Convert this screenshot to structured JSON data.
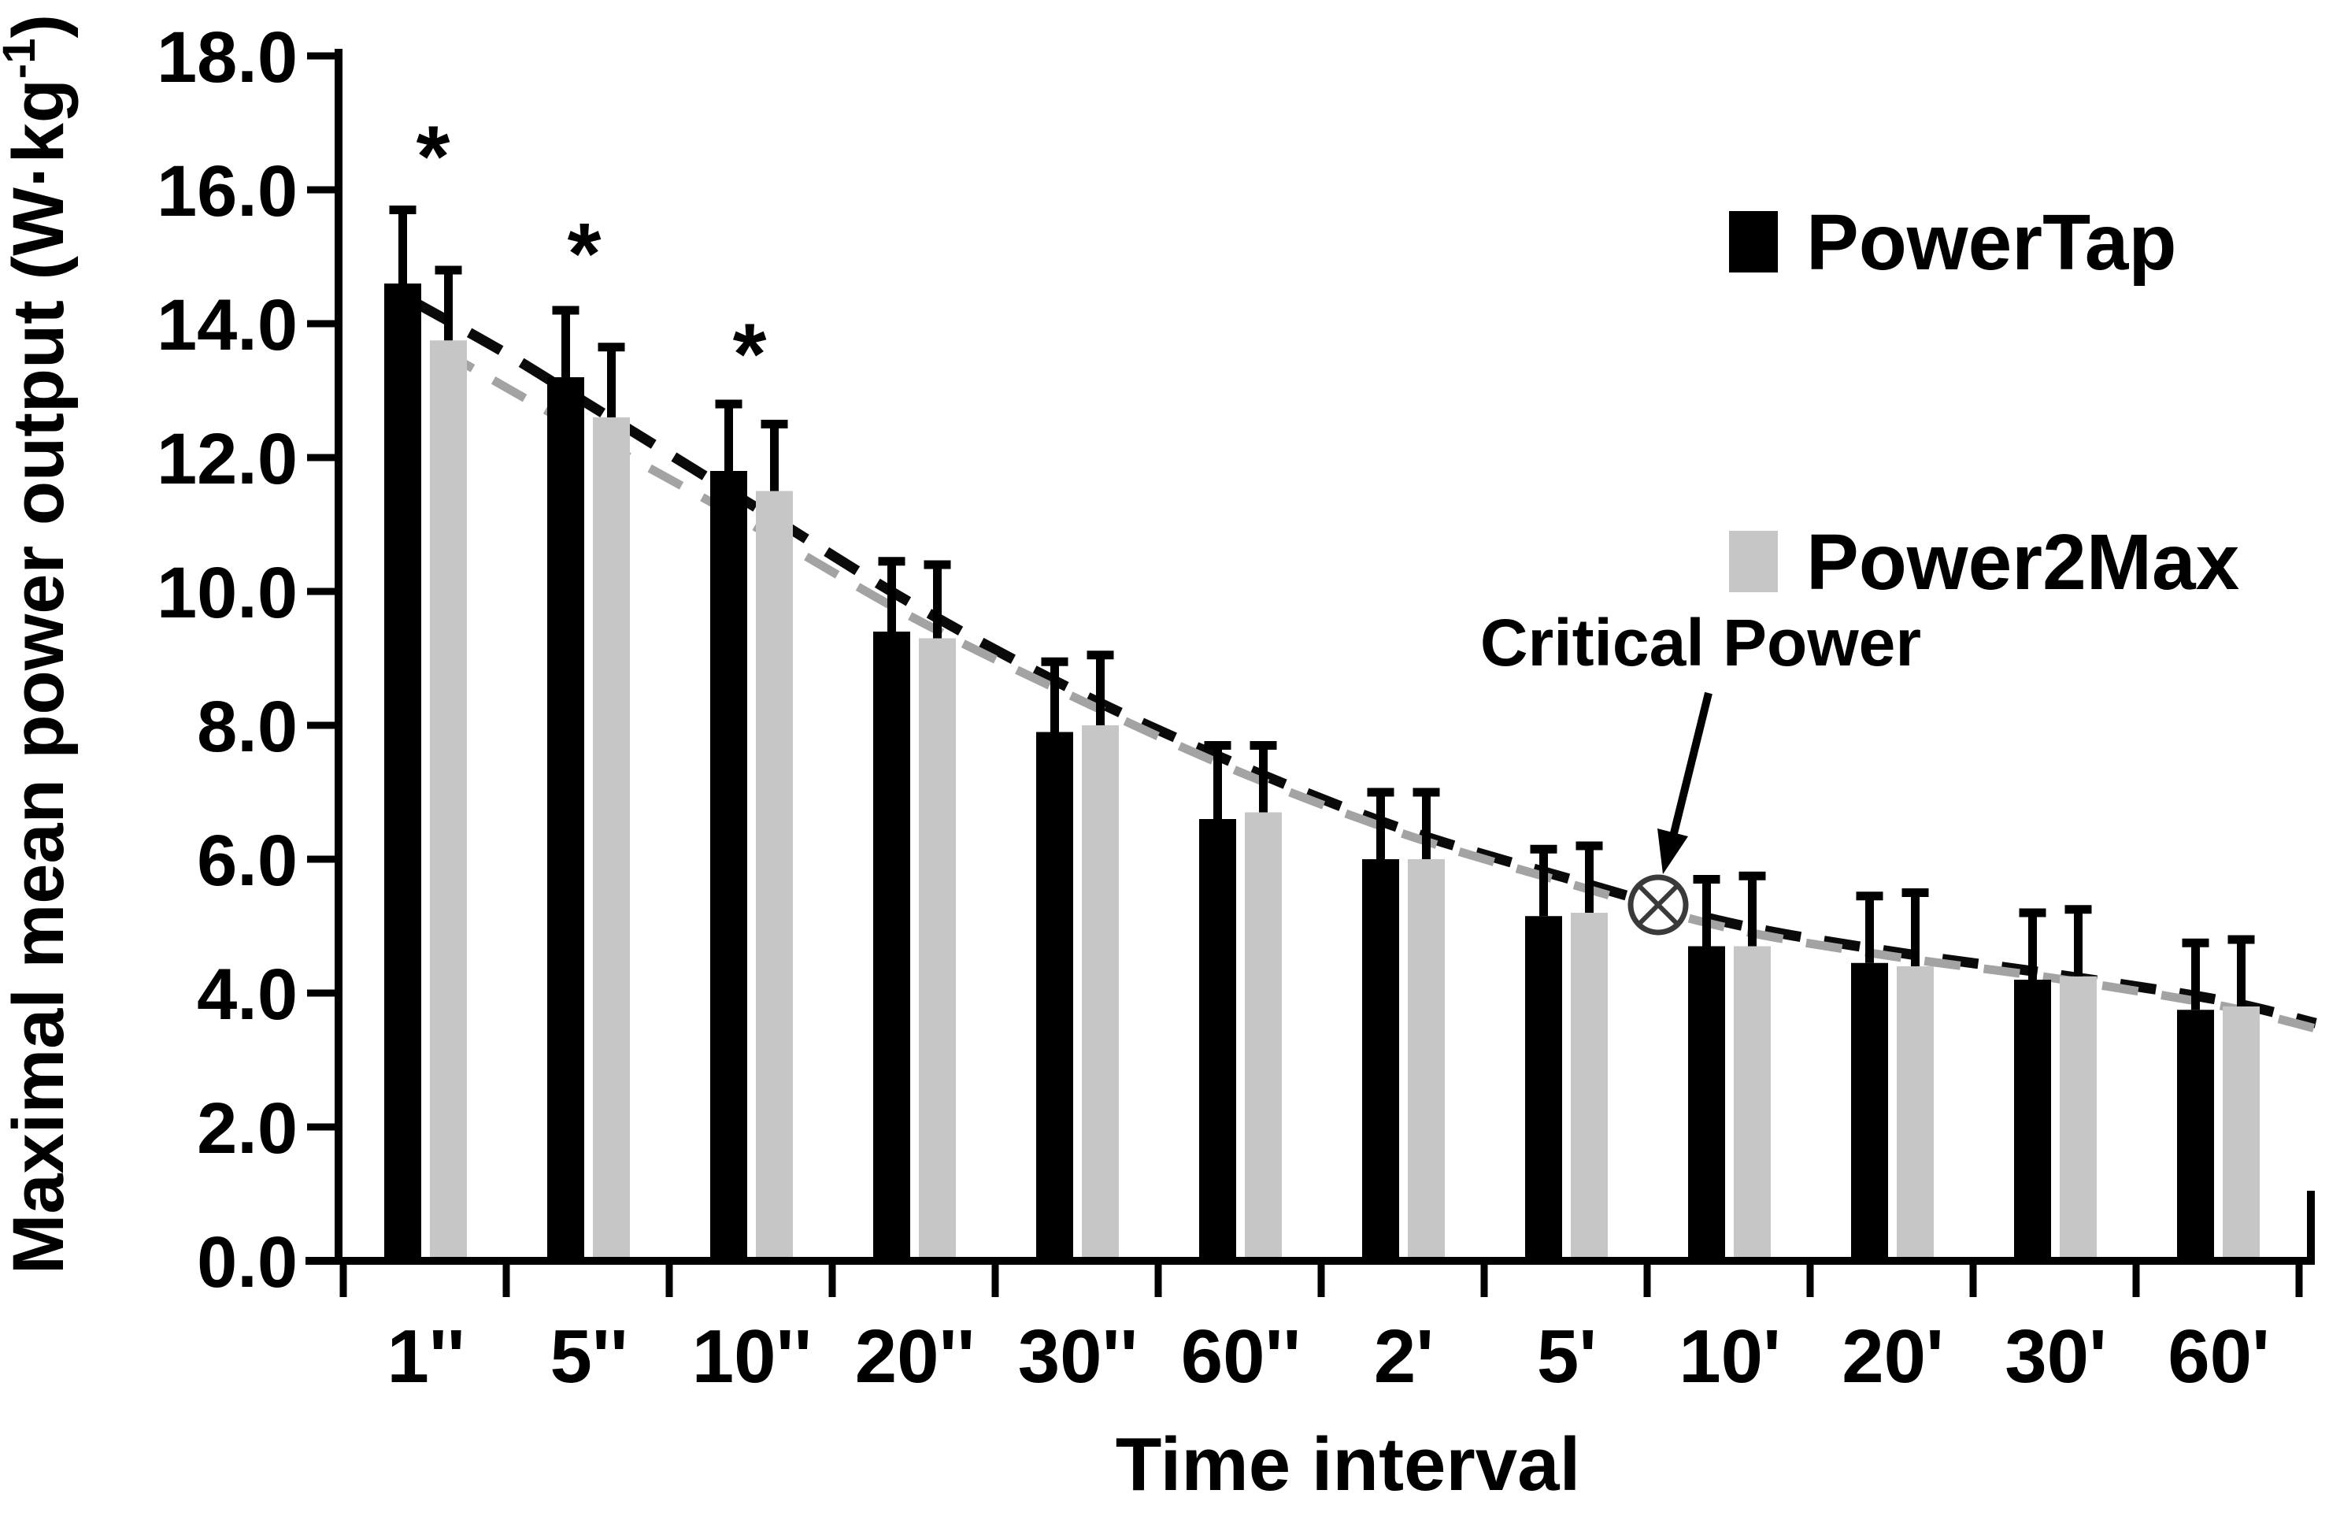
{
  "labels": {
    "y_title_pre": "Maximal mean power output (W·kg",
    "y_title_sup": "-1",
    "y_title_post": ")",
    "x_title": "Time interval"
  },
  "legend": [
    {
      "label": "PowerTap",
      "color": "#000000"
    },
    {
      "label": "Power2Max",
      "color": "#c6c6c6"
    }
  ],
  "annotation": {
    "label": "Critical Power",
    "marker": "circled-x-icon",
    "value": 5.3,
    "location": "between 5' and 10' on the trend line"
  },
  "chart_data": {
    "type": "bar",
    "title": "",
    "xlabel": "Time interval",
    "ylabel": "Maximal mean power output (W·kg-1)",
    "ylim": [
      0,
      18
    ],
    "ytick_step": 2,
    "ytick_labels": [
      "18.0",
      "16.0",
      "14.0",
      "12.0",
      "10.0",
      "8.0",
      "6.0",
      "4.0",
      "2.0",
      "0.0"
    ],
    "ytick_values": [
      18,
      16,
      14,
      12,
      10,
      8,
      6,
      4,
      2,
      0
    ],
    "grid": false,
    "legend_position": "upper right",
    "categories": [
      "1''",
      "5''",
      "10''",
      "20''",
      "30''",
      "60''",
      "2'",
      "5'",
      "10'",
      "20'",
      "30'",
      "60'"
    ],
    "series": [
      {
        "name": "PowerTap",
        "color": "#000000",
        "values": [
          14.6,
          13.2,
          11.8,
          9.4,
          7.9,
          6.6,
          6.0,
          5.15,
          4.7,
          4.45,
          4.2,
          3.75
        ],
        "sd": [
          1.1,
          1.0,
          1.0,
          1.05,
          1.05,
          1.1,
          1.0,
          1.0,
          1.0,
          1.0,
          1.0,
          1.0
        ]
      },
      {
        "name": "Power2Max",
        "color": "#c6c6c6",
        "values": [
          13.75,
          12.6,
          11.5,
          9.3,
          8.0,
          6.7,
          6.0,
          5.2,
          4.7,
          4.4,
          4.25,
          3.8
        ],
        "sd": [
          1.05,
          1.05,
          1.0,
          1.1,
          1.05,
          1.0,
          1.0,
          1.0,
          1.05,
          1.1,
          1.0,
          1.0
        ]
      }
    ],
    "significance": {
      "symbol": "*",
      "groups": [
        "1''",
        "5''",
        "10''"
      ],
      "group_index": [
        0,
        1,
        2
      ],
      "y_values": [
        16.7,
        15.25,
        13.75
      ],
      "x_offsets": [
        10,
        -5,
        -2
      ]
    },
    "trend_lines": [
      {
        "name": "PowerTap fit",
        "color": "#0a0a0a",
        "points": [
          [
            -0.05,
            14.3
          ],
          [
            0.5,
            13.55
          ],
          [
            1,
            12.8
          ],
          [
            2,
            11.3
          ],
          [
            3,
            9.8
          ],
          [
            4,
            8.5
          ],
          [
            5,
            7.4
          ],
          [
            6,
            6.45
          ],
          [
            7,
            5.72
          ],
          [
            8,
            5.05
          ],
          [
            9,
            4.62
          ],
          [
            10,
            4.28
          ],
          [
            11,
            3.9
          ],
          [
            11.6,
            3.55
          ]
        ]
      },
      {
        "name": "Power2Max fit",
        "color": "#a3a3a3",
        "points": [
          [
            0.1,
            13.6
          ],
          [
            1,
            12.35
          ],
          [
            2,
            11.0
          ],
          [
            3,
            9.6
          ],
          [
            4,
            8.4
          ],
          [
            5,
            7.3
          ],
          [
            6,
            6.38
          ],
          [
            7,
            5.65
          ],
          [
            8,
            4.97
          ],
          [
            9,
            4.55
          ],
          [
            10,
            4.22
          ],
          [
            11,
            3.82
          ],
          [
            11.6,
            3.47
          ]
        ]
      }
    ],
    "critical_power_marker": {
      "value": 5.3,
      "t": 7.55
    }
  }
}
